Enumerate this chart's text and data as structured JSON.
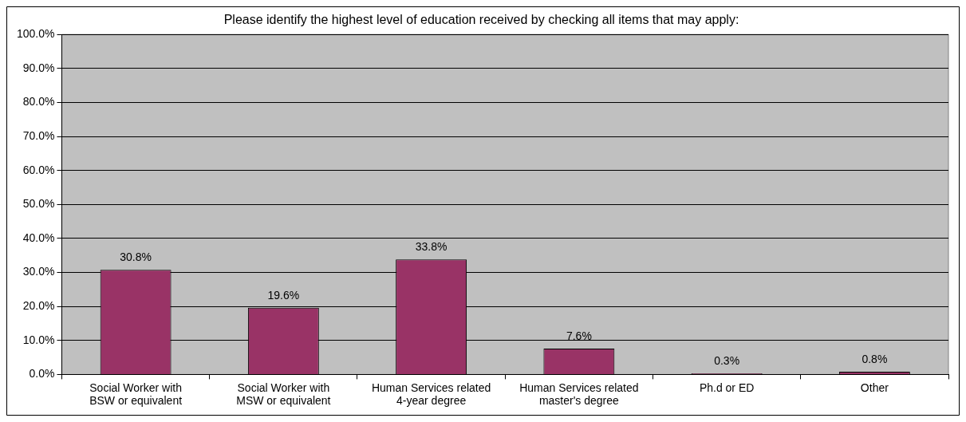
{
  "chart_data": {
    "type": "bar",
    "title": "Please identify the highest level of education received by checking all items that may apply:",
    "categories": [
      "Social Worker with BSW or equivalent",
      "Social Worker with MSW or equivalent",
      "Human Services related 4-year degree",
      "Human Services related master's degree",
      "Ph.d or ED",
      "Other"
    ],
    "values": [
      30.8,
      19.6,
      33.8,
      7.6,
      0.3,
      0.8
    ],
    "value_labels": [
      "30.8%",
      "19.6%",
      "33.8%",
      "7.6%",
      "0.3%",
      "0.8%"
    ],
    "color": "#993366",
    "ylim": [
      0,
      100
    ],
    "yticks": [
      {
        "value": 0,
        "label": "0.0%"
      },
      {
        "value": 10,
        "label": "10.0%"
      },
      {
        "value": 20,
        "label": "20.0%"
      },
      {
        "value": 30,
        "label": "30.0%"
      },
      {
        "value": 40,
        "label": "40.0%"
      },
      {
        "value": 50,
        "label": "50.0%"
      },
      {
        "value": 60,
        "label": "60.0%"
      },
      {
        "value": 70,
        "label": "70.0%"
      },
      {
        "value": 80,
        "label": "80.0%"
      },
      {
        "value": 90,
        "label": "90.0%"
      },
      {
        "value": 100,
        "label": "100.0%"
      }
    ],
    "grid": "y",
    "legend": false
  }
}
